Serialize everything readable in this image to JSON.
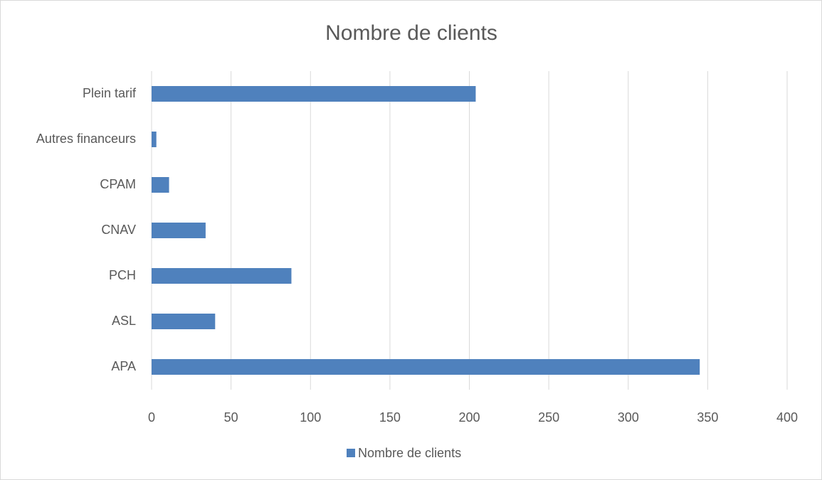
{
  "chart_data": {
    "type": "bar",
    "orientation": "horizontal",
    "title": "Nombre de clients",
    "categories": [
      "APA",
      "ASL",
      "PCH",
      "CNAV",
      "CPAM",
      "Autres financeurs",
      "Plein tarif"
    ],
    "series": [
      {
        "name": "Nombre de clients",
        "color": "#4f81bd",
        "values": [
          345,
          40,
          88,
          34,
          11,
          3,
          204
        ]
      }
    ],
    "xlim": [
      0,
      400
    ],
    "xticks": [
      0,
      50,
      100,
      150,
      200,
      250,
      300,
      350,
      400
    ],
    "grid": true,
    "legend": "bottom"
  }
}
